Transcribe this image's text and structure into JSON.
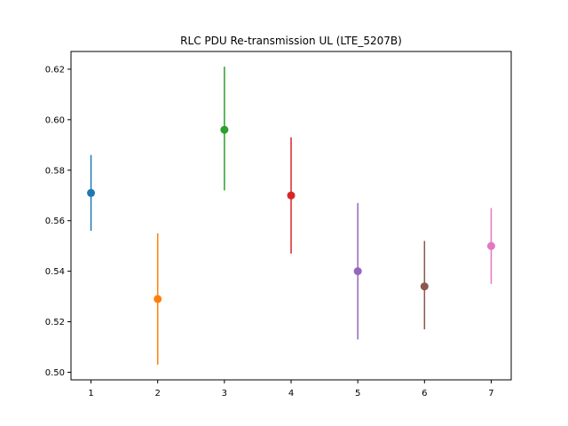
{
  "chart_data": {
    "type": "scatter",
    "title": "RLC PDU Re-transmission UL (LTE_5207B)",
    "xlabel": "",
    "ylabel": "",
    "xlim": [
      0.7,
      7.3
    ],
    "ylim": [
      0.497,
      0.627
    ],
    "xticks": [
      1,
      2,
      3,
      4,
      5,
      6,
      7
    ],
    "yticks": [
      0.5,
      0.52,
      0.54,
      0.56,
      0.58,
      0.6,
      0.62
    ],
    "ytick_labels": [
      "0.50",
      "0.52",
      "0.54",
      "0.56",
      "0.58",
      "0.60",
      "0.62"
    ],
    "grid": false,
    "error_bars": true,
    "points": [
      {
        "x": 1,
        "y": 0.571,
        "low": 0.556,
        "high": 0.586,
        "color": "#1f77b4"
      },
      {
        "x": 2,
        "y": 0.529,
        "low": 0.503,
        "high": 0.555,
        "color": "#ff7f0e"
      },
      {
        "x": 3,
        "y": 0.596,
        "low": 0.572,
        "high": 0.621,
        "color": "#2ca02c"
      },
      {
        "x": 4,
        "y": 0.57,
        "low": 0.547,
        "high": 0.593,
        "color": "#d62728"
      },
      {
        "x": 5,
        "y": 0.54,
        "low": 0.513,
        "high": 0.567,
        "color": "#9467bd"
      },
      {
        "x": 6,
        "y": 0.534,
        "low": 0.517,
        "high": 0.552,
        "color": "#8c564b"
      },
      {
        "x": 7,
        "y": 0.55,
        "low": 0.535,
        "high": 0.565,
        "color": "#e377c2"
      }
    ]
  }
}
